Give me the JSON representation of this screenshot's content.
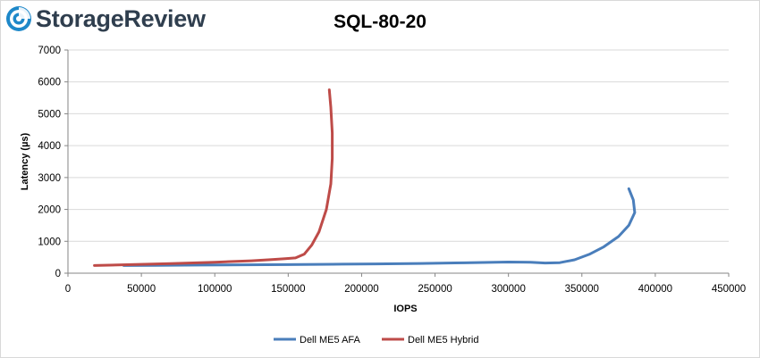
{
  "brand": {
    "name": "StorageReview"
  },
  "chart_data": {
    "type": "line",
    "title": "SQL-80-20",
    "xlabel": "IOPS",
    "ylabel": "Latency (µs)",
    "xlim": [
      0,
      450000
    ],
    "ylim": [
      0,
      7000
    ],
    "x_ticks": [
      0,
      50000,
      100000,
      150000,
      200000,
      250000,
      300000,
      350000,
      400000,
      450000
    ],
    "y_ticks": [
      0,
      1000,
      2000,
      3000,
      4000,
      5000,
      6000,
      7000
    ],
    "grid": "horizontal",
    "legend_position": "bottom",
    "series": [
      {
        "name": "Dell ME5 AFA",
        "color": "#4a7ebb",
        "points": [
          [
            38000,
            240
          ],
          [
            60000,
            245
          ],
          [
            90000,
            255
          ],
          [
            120000,
            262
          ],
          [
            150000,
            270
          ],
          [
            180000,
            280
          ],
          [
            210000,
            290
          ],
          [
            240000,
            305
          ],
          [
            270000,
            325
          ],
          [
            300000,
            350
          ],
          [
            315000,
            345
          ],
          [
            325000,
            320
          ],
          [
            335000,
            330
          ],
          [
            345000,
            420
          ],
          [
            355000,
            590
          ],
          [
            365000,
            830
          ],
          [
            375000,
            1150
          ],
          [
            382000,
            1500
          ],
          [
            386000,
            1900
          ],
          [
            385000,
            2300
          ],
          [
            382000,
            2650
          ]
        ]
      },
      {
        "name": "Dell ME5 Hybrid",
        "color": "#be4b48",
        "points": [
          [
            18000,
            240
          ],
          [
            40000,
            265
          ],
          [
            70000,
            300
          ],
          [
            100000,
            345
          ],
          [
            125000,
            390
          ],
          [
            140000,
            430
          ],
          [
            148000,
            455
          ],
          [
            155000,
            480
          ],
          [
            161000,
            600
          ],
          [
            166000,
            880
          ],
          [
            171000,
            1300
          ],
          [
            176000,
            2000
          ],
          [
            179000,
            2800
          ],
          [
            180000,
            3600
          ],
          [
            180000,
            4400
          ],
          [
            179000,
            5200
          ],
          [
            178000,
            5750
          ]
        ]
      }
    ]
  }
}
